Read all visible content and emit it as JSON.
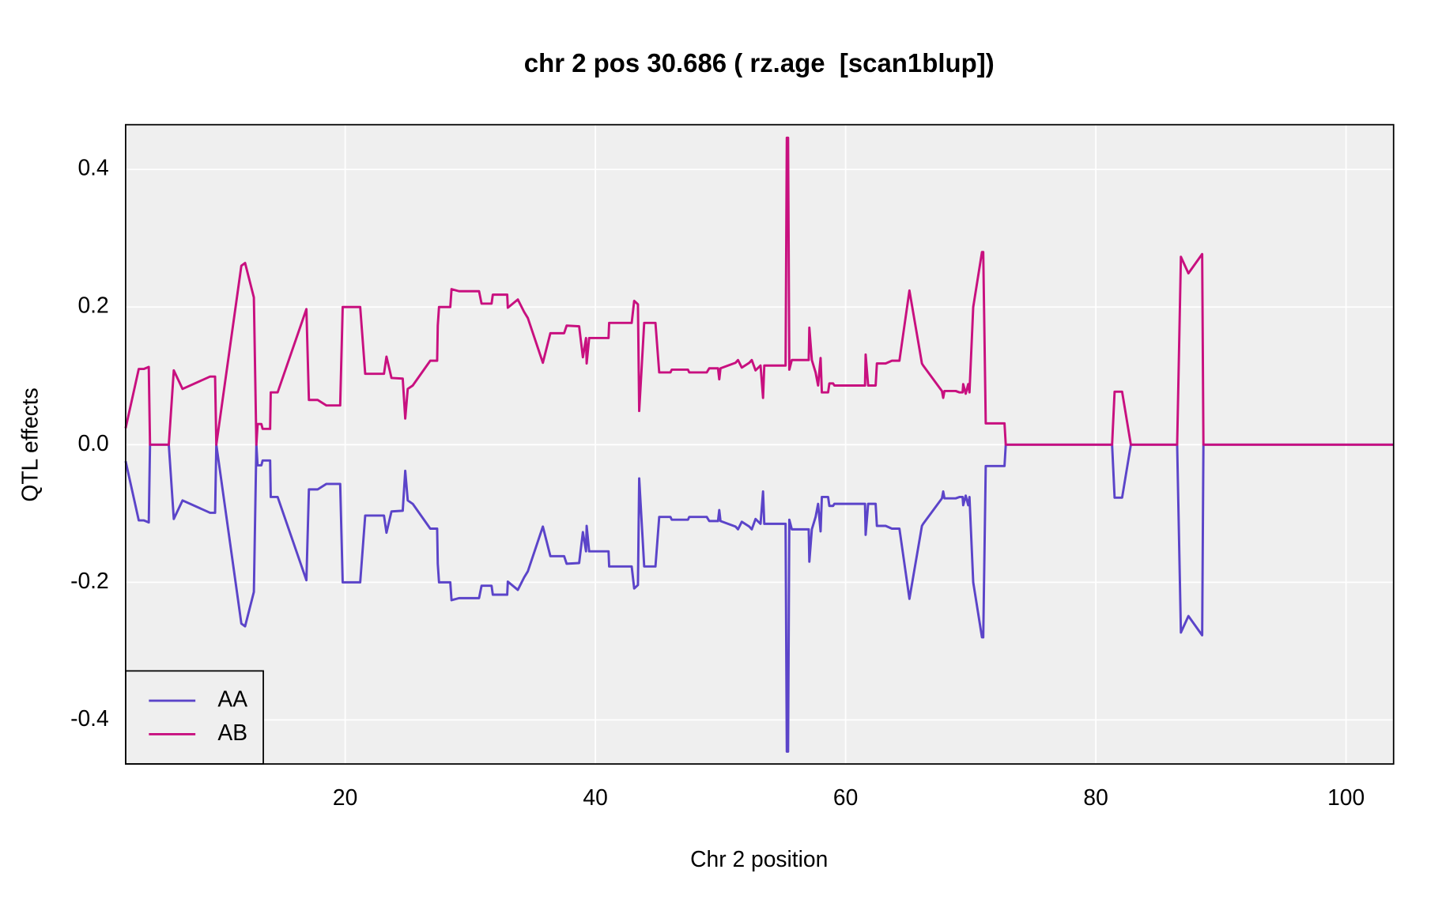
{
  "chart_data": {
    "type": "line",
    "title": "chr 2 pos 30.686 ( rz.age  [scan1blup])",
    "xlabel": "Chr 2 position",
    "ylabel": "QTL effects",
    "x": [
      2.45,
      3.5,
      3.9,
      4.3,
      4.4,
      5.9,
      6.3,
      7.0,
      9.2,
      9.6,
      9.7,
      11.7,
      12.0,
      12.7,
      12.9,
      13.0,
      13.3,
      13.4,
      14.0,
      14.05,
      14.6,
      16.9,
      17.1,
      17.8,
      18.5,
      19.6,
      19.8,
      21.2,
      21.6,
      23.1,
      23.3,
      23.7,
      24.6,
      24.8,
      25.0,
      25.4,
      26.8,
      27.35,
      27.4,
      27.5,
      28.4,
      28.5,
      29.1,
      30.7,
      30.9,
      31.7,
      31.8,
      32.95,
      33.0,
      33.8,
      34.3,
      34.6,
      35.8,
      36.4,
      37.5,
      37.7,
      38.7,
      39.0,
      39.25,
      39.3,
      39.5,
      41.05,
      41.1,
      42.9,
      43.1,
      43.4,
      43.5,
      43.9,
      44.8,
      45.1,
      46.0,
      46.1,
      47.4,
      47.5,
      48.9,
      49.1,
      49.8,
      49.9,
      50.0,
      51.2,
      51.4,
      51.7,
      52.3,
      52.5,
      52.8,
      53.2,
      53.4,
      53.5,
      55.2,
      55.3,
      55.4,
      55.5,
      55.7,
      57.05,
      57.1,
      57.3,
      57.6,
      57.8,
      58.0,
      58.1,
      58.6,
      58.7,
      59.0,
      59.1,
      61.55,
      61.6,
      61.8,
      62.4,
      62.5,
      63.2,
      63.7,
      64.3,
      65.1,
      66.1,
      66.2,
      67.7,
      67.8,
      67.9,
      68.8,
      69.1,
      69.35,
      69.4,
      69.6,
      69.8,
      69.9,
      70.2,
      70.9,
      71.0,
      71.2,
      72.7,
      72.8,
      81.3,
      81.5,
      82.1,
      82.8,
      86.5,
      86.8,
      87.4,
      88.5,
      88.6,
      103.8
    ],
    "series": [
      {
        "name": "AA",
        "color": "#5b44c9",
        "values": [
          -0.024,
          -0.11,
          -0.11,
          -0.113,
          0,
          0,
          -0.108,
          -0.081,
          -0.099,
          -0.099,
          0,
          -0.26,
          -0.264,
          -0.214,
          0,
          -0.03,
          -0.03,
          -0.023,
          -0.023,
          -0.076,
          -0.076,
          -0.197,
          -0.065,
          -0.065,
          -0.057,
          -0.057,
          -0.2,
          -0.2,
          -0.103,
          -0.103,
          -0.128,
          -0.097,
          -0.096,
          -0.038,
          -0.081,
          -0.086,
          -0.122,
          -0.122,
          -0.173,
          -0.2,
          -0.2,
          -0.226,
          -0.223,
          -0.223,
          -0.205,
          -0.205,
          -0.218,
          -0.218,
          -0.199,
          -0.211,
          -0.193,
          -0.184,
          -0.119,
          -0.162,
          -0.162,
          -0.173,
          -0.172,
          -0.127,
          -0.155,
          -0.118,
          -0.155,
          -0.155,
          -0.177,
          -0.177,
          -0.209,
          -0.204,
          -0.049,
          -0.177,
          -0.177,
          -0.105,
          -0.105,
          -0.109,
          -0.109,
          -0.105,
          -0.105,
          -0.111,
          -0.111,
          -0.095,
          -0.111,
          -0.119,
          -0.123,
          -0.112,
          -0.119,
          -0.123,
          -0.108,
          -0.115,
          -0.068,
          -0.115,
          -0.115,
          -0.446,
          -0.446,
          -0.109,
          -0.123,
          -0.123,
          -0.17,
          -0.123,
          -0.105,
          -0.086,
          -0.126,
          -0.076,
          -0.076,
          -0.089,
          -0.089,
          -0.086,
          -0.086,
          -0.131,
          -0.086,
          -0.086,
          -0.118,
          -0.118,
          -0.122,
          -0.122,
          -0.224,
          -0.118,
          -0.115,
          -0.078,
          -0.068,
          -0.078,
          -0.078,
          -0.076,
          -0.076,
          -0.088,
          -0.074,
          -0.088,
          -0.076,
          -0.2,
          -0.28,
          -0.28,
          -0.031,
          -0.031,
          0,
          0,
          -0.077,
          -0.077,
          0,
          0,
          -0.273,
          -0.249,
          -0.277,
          0,
          0
        ]
      },
      {
        "name": "AB",
        "color": "#c8107f",
        "values": [
          0.024,
          0.11,
          0.11,
          0.113,
          0,
          0,
          0.108,
          0.081,
          0.099,
          0.099,
          0,
          0.26,
          0.264,
          0.214,
          0,
          0.03,
          0.03,
          0.023,
          0.023,
          0.076,
          0.076,
          0.197,
          0.065,
          0.065,
          0.057,
          0.057,
          0.2,
          0.2,
          0.103,
          0.103,
          0.128,
          0.097,
          0.096,
          0.038,
          0.081,
          0.086,
          0.122,
          0.122,
          0.173,
          0.2,
          0.2,
          0.226,
          0.223,
          0.223,
          0.205,
          0.205,
          0.218,
          0.218,
          0.199,
          0.211,
          0.193,
          0.184,
          0.119,
          0.162,
          0.162,
          0.173,
          0.172,
          0.127,
          0.155,
          0.118,
          0.155,
          0.155,
          0.177,
          0.177,
          0.209,
          0.204,
          0.049,
          0.177,
          0.177,
          0.105,
          0.105,
          0.109,
          0.109,
          0.105,
          0.105,
          0.111,
          0.111,
          0.095,
          0.111,
          0.119,
          0.123,
          0.112,
          0.119,
          0.123,
          0.108,
          0.115,
          0.068,
          0.115,
          0.115,
          0.446,
          0.446,
          0.109,
          0.123,
          0.123,
          0.17,
          0.123,
          0.105,
          0.086,
          0.126,
          0.076,
          0.076,
          0.089,
          0.089,
          0.086,
          0.086,
          0.131,
          0.086,
          0.086,
          0.118,
          0.118,
          0.122,
          0.122,
          0.224,
          0.118,
          0.115,
          0.078,
          0.068,
          0.078,
          0.078,
          0.076,
          0.076,
          0.088,
          0.074,
          0.088,
          0.076,
          0.2,
          0.28,
          0.28,
          0.031,
          0.031,
          0,
          0,
          0.077,
          0.077,
          0,
          0,
          0.273,
          0.249,
          0.277,
          0,
          0
        ]
      }
    ],
    "xlim": [
      2.45,
      103.8
    ],
    "ylim": [
      -0.464,
      0.465
    ],
    "xticks": [
      20,
      40,
      60,
      80,
      100
    ],
    "yticks": [
      -0.4,
      -0.2,
      {
        "value": 0,
        "label": "0.0"
      },
      0.2,
      0.4
    ],
    "grid": true,
    "legend": "bottom-left"
  }
}
